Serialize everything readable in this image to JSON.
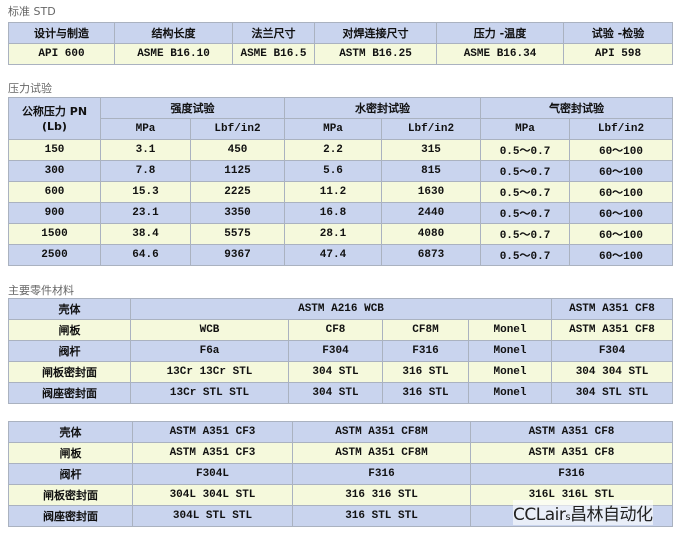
{
  "std": {
    "title": "标准  STD",
    "headers": [
      "设计与制造",
      "结构长度",
      "法兰尺寸",
      "对焊连接尺寸",
      "压力 -温度",
      "试验 -检验"
    ],
    "values": [
      "API 600",
      "ASME B16.10",
      "ASME B16.5",
      "ASTM B16.25",
      "ASME B16.34",
      "API 598"
    ]
  },
  "pressure": {
    "title": "压力试验",
    "col0": "公称压力 PN (Lb)",
    "groups": [
      "强度试验",
      "水密封试验",
      "气密封试验"
    ],
    "units": [
      "MPa",
      "Lbf/in2",
      "MPa",
      "Lbf/in2",
      "MPa",
      "Lbf/in2"
    ],
    "rows": [
      [
        "150",
        "3.1",
        "450",
        "2.2",
        "315",
        "0.5～0.7",
        "60～100"
      ],
      [
        "300",
        "7.8",
        "1125",
        "5.6",
        "815",
        "0.5～0.7",
        "60～100"
      ],
      [
        "600",
        "15.3",
        "2225",
        "11.2",
        "1630",
        "0.5～0.7",
        "60～100"
      ],
      [
        "900",
        "23.1",
        "3350",
        "16.8",
        "2440",
        "0.5～0.7",
        "60～100"
      ],
      [
        "1500",
        "38.4",
        "5575",
        "28.1",
        "4080",
        "0.5～0.7",
        "60～100"
      ],
      [
        "2500",
        "64.6",
        "9367",
        "47.4",
        "6873",
        "0.5～0.7",
        "60～100"
      ]
    ]
  },
  "materials": {
    "title": "主要零件材料",
    "t1": {
      "body": [
        "壳体",
        "ASTM A216 WCB",
        "ASTM A351 CF8"
      ],
      "disc": [
        "闸板",
        "WCB",
        "CF8",
        "CF8M",
        "Monel",
        "ASTM A351 CF8"
      ],
      "stem": [
        "阀杆",
        "F6a",
        "F304",
        "F316",
        "Monel",
        "F304"
      ],
      "disc_seat": [
        "闸板密封面",
        "13Cr 13Cr STL",
        "304 STL",
        "316 STL",
        "Monel",
        "304 304 STL"
      ],
      "body_seat": [
        "阀座密封面",
        "13Cr STL STL",
        "304 STL",
        "316 STL",
        "Monel",
        "304 STL STL"
      ]
    },
    "t2": [
      [
        "壳体",
        "ASTM A351 CF3",
        "ASTM A351 CF8M",
        "ASTM A351 CF8"
      ],
      [
        "闸板",
        "ASTM A351 CF3",
        "ASTM A351 CF8M",
        "ASTM A351 CF8"
      ],
      [
        "阀杆",
        "F304L",
        "F316",
        "F316"
      ],
      [
        "闸板密封面",
        "304L 304L STL",
        "316 316 STL",
        "316L 316L STL"
      ],
      [
        "阀座密封面",
        "304L STL STL",
        "316 STL STL",
        ""
      ]
    ]
  },
  "watermark": "CCLairs昌林自动化",
  "colors": {
    "header_blue": "#c9d4ee",
    "row_yellow": "#f5f9dc",
    "border": "#aab2c0"
  }
}
